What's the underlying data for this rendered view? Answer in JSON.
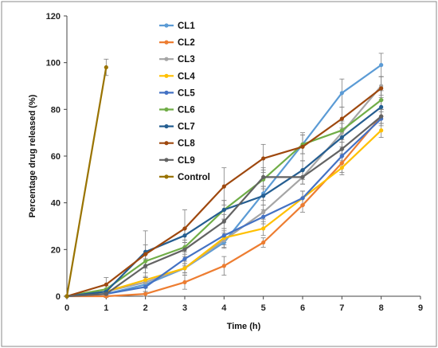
{
  "chart_data": {
    "type": "line",
    "xlabel": "Time (h)",
    "ylabel": "Percentage drug released (%)",
    "xlim": [
      0,
      9
    ],
    "ylim": [
      0,
      120
    ],
    "x_ticks": [
      0,
      1,
      2,
      3,
      4,
      5,
      6,
      7,
      8,
      9
    ],
    "y_ticks": [
      0,
      20,
      40,
      60,
      80,
      100,
      120
    ],
    "grid": false,
    "legend_position": "top-left inside",
    "error_bars": true,
    "series": [
      {
        "name": "CL1",
        "color": "#5B9BD5",
        "x": [
          0,
          1,
          2,
          3,
          4,
          5,
          6,
          7,
          8
        ],
        "y": [
          0,
          1,
          5,
          12,
          23,
          44,
          65,
          87,
          99
        ],
        "err": [
          0,
          1,
          1.5,
          2,
          2.5,
          3,
          4,
          6,
          5
        ]
      },
      {
        "name": "CL2",
        "color": "#ED7D31",
        "x": [
          0,
          1,
          2,
          3,
          4,
          5,
          6,
          7,
          8
        ],
        "y": [
          0,
          0,
          1,
          6,
          13,
          23,
          39,
          57,
          77
        ],
        "err": [
          0,
          0.5,
          1,
          3,
          4,
          2,
          3,
          4,
          3
        ]
      },
      {
        "name": "CL3",
        "color": "#A5A5A5",
        "x": [
          0,
          1,
          2,
          3,
          4,
          5,
          6,
          7,
          8
        ],
        "y": [
          0,
          2,
          6,
          12,
          24,
          36,
          51,
          70,
          90
        ],
        "err": [
          0,
          1,
          2,
          3,
          3,
          3,
          3,
          4,
          4
        ]
      },
      {
        "name": "CL4",
        "color": "#FFC000",
        "x": [
          0,
          1,
          2,
          3,
          4,
          5,
          6,
          7,
          8
        ],
        "y": [
          0,
          2,
          7,
          12,
          25,
          29,
          42,
          55,
          71
        ],
        "err": [
          0,
          1,
          1.5,
          2,
          3,
          3,
          3,
          3,
          3
        ]
      },
      {
        "name": "CL5",
        "color": "#4472C4",
        "x": [
          0,
          1,
          2,
          3,
          4,
          5,
          6,
          7,
          8
        ],
        "y": [
          0,
          1,
          4,
          16,
          26,
          34,
          42,
          60,
          76
        ],
        "err": [
          0,
          1,
          2,
          3,
          3,
          3,
          3,
          3,
          3
        ]
      },
      {
        "name": "CL6",
        "color": "#70AD47",
        "x": [
          0,
          1,
          2,
          3,
          4,
          5,
          6,
          7,
          8
        ],
        "y": [
          0,
          3,
          15,
          21,
          37,
          50,
          65,
          71,
          84
        ],
        "err": [
          0,
          1.5,
          3,
          3,
          4,
          4,
          4,
          4,
          4
        ]
      },
      {
        "name": "CL7",
        "color": "#255E91",
        "x": [
          0,
          1,
          2,
          3,
          4,
          5,
          6,
          7,
          8
        ],
        "y": [
          0,
          2,
          19,
          26,
          37,
          43,
          54,
          68,
          81
        ],
        "err": [
          0,
          1,
          3,
          3,
          4,
          4,
          4,
          4,
          4
        ]
      },
      {
        "name": "CL8",
        "color": "#9E480E",
        "x": [
          0,
          1,
          2,
          3,
          4,
          5,
          6,
          7,
          8
        ],
        "y": [
          0,
          5,
          18,
          29,
          47,
          59,
          64,
          76,
          89
        ],
        "err": [
          0,
          3,
          10,
          8,
          8,
          6,
          6,
          5,
          5
        ]
      },
      {
        "name": "CL9",
        "color": "#636363",
        "x": [
          0,
          1,
          2,
          3,
          4,
          5,
          6,
          7,
          8
        ],
        "y": [
          0,
          1,
          13,
          20,
          32,
          51,
          51,
          63,
          77
        ],
        "err": [
          0,
          1,
          3,
          3,
          3,
          4,
          3,
          3,
          3
        ]
      },
      {
        "name": "Control",
        "color": "#997300",
        "x": [
          0,
          1
        ],
        "y": [
          0,
          98
        ],
        "err": [
          0,
          3.5
        ]
      }
    ]
  }
}
